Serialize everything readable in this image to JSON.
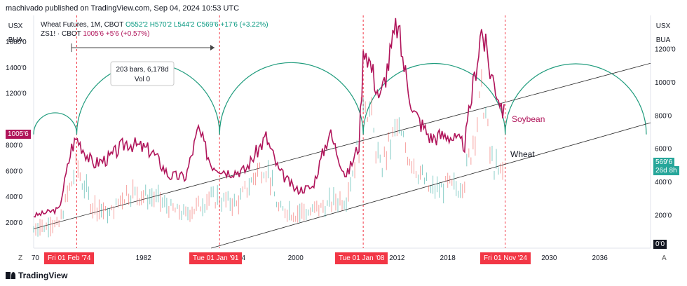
{
  "header": {
    "text": "machivado published on TradingView.com, Sep 04, 2024 10:53 UTC"
  },
  "footer": {
    "brand": "TradingView"
  },
  "legend": {
    "line1_prefix": "Wheat Futures, 1M, CBOT",
    "line1_o": "O552'2",
    "line1_h": "H570'2",
    "line1_l": "L544'2",
    "line1_c": "C569'6",
    "line1_chg": "+17'6 (+3.22%)",
    "line2_prefix": "ZS1! · CBOT",
    "line2_value": "1005'6",
    "line2_chg": "+5'6 (+0.57%)"
  },
  "measure": {
    "bars": "203 bars, 6,178d",
    "vol": "Vol 0"
  },
  "labels": {
    "soybean": "Soybean",
    "wheat": "Wheat"
  },
  "left_axis": {
    "currency": "USX",
    "unit": "BUA",
    "ticks": [
      "1600'0",
      "1400'0",
      "1200'0",
      "800'0",
      "600'0",
      "400'0",
      "200'0"
    ],
    "current": "1005'6"
  },
  "right_axis": {
    "currency": "USX",
    "unit": "BUA",
    "ticks": [
      "1200'0",
      "1000'0",
      "800'0",
      "600'0",
      "400'0",
      "200'0"
    ],
    "current": "569'6",
    "countdown": "26d 8h",
    "zero": "0'0"
  },
  "x_axis": {
    "ticks": [
      "70",
      "1982",
      "19",
      "94",
      "2000",
      "2012",
      "2018",
      "2030",
      "2036"
    ]
  },
  "date_tags": [
    "Fri 01 Feb '74",
    "Tue 01 Jan '91",
    "Tue 01 Jan '08",
    "Fri 01 Nov '24"
  ],
  "corner": {
    "left": "Z",
    "right": "A"
  },
  "colors": {
    "soybean": "#b0145a",
    "wheat_up": "#26a69a",
    "wheat_down": "#ef5350",
    "arc": "#1e9b7c",
    "cycle": "#f23645",
    "channel": "#2a2a2a"
  },
  "chart_data": {
    "type": "line",
    "series": [
      {
        "name": "Soybean",
        "x": [
          1969,
          1972,
          1973.5,
          1974.1,
          1976,
          1978,
          1980,
          1983,
          1985,
          1987,
          1988.5,
          1990,
          1992,
          1994,
          1996.5,
          1998,
          2000,
          2002,
          2004,
          2006,
          2007.5,
          2008.1,
          2010,
          2012,
          2013,
          2014,
          2016,
          2018,
          2019,
          2020,
          2022,
          2023,
          2024.4,
          2024.8
        ],
        "values": [
          250,
          300,
          780,
          850,
          650,
          700,
          820,
          750,
          560,
          550,
          920,
          650,
          590,
          600,
          860,
          600,
          450,
          470,
          900,
          550,
          800,
          1600,
          1150,
          1730,
          1350,
          1050,
          850,
          880,
          830,
          800,
          1700,
          1380,
          1100,
          1005.75
        ]
      },
      {
        "name": "Wheat",
        "x": [
          1969,
          1972,
          1973.5,
          1974.1,
          1976,
          1978,
          1980,
          1983,
          1985,
          1987,
          1990,
          1993,
          1996.3,
          1998,
          2000,
          2002,
          2004,
          2006,
          2007.5,
          2008.1,
          2010,
          2012,
          2014,
          2016,
          2018,
          2019,
          2020,
          2022.2,
          2023,
          2024,
          2024.7
        ],
        "values": [
          140,
          180,
          500,
          620,
          300,
          260,
          420,
          380,
          310,
          250,
          380,
          330,
          660,
          300,
          250,
          280,
          330,
          380,
          800,
          1270,
          600,
          900,
          650,
          430,
          470,
          450,
          520,
          1200,
          700,
          560,
          569.75
        ]
      }
    ],
    "left_axis_range": [
      0,
      1800
    ],
    "right_axis_range": [
      0,
      1400
    ],
    "x_range": [
      1969,
      2042
    ]
  }
}
